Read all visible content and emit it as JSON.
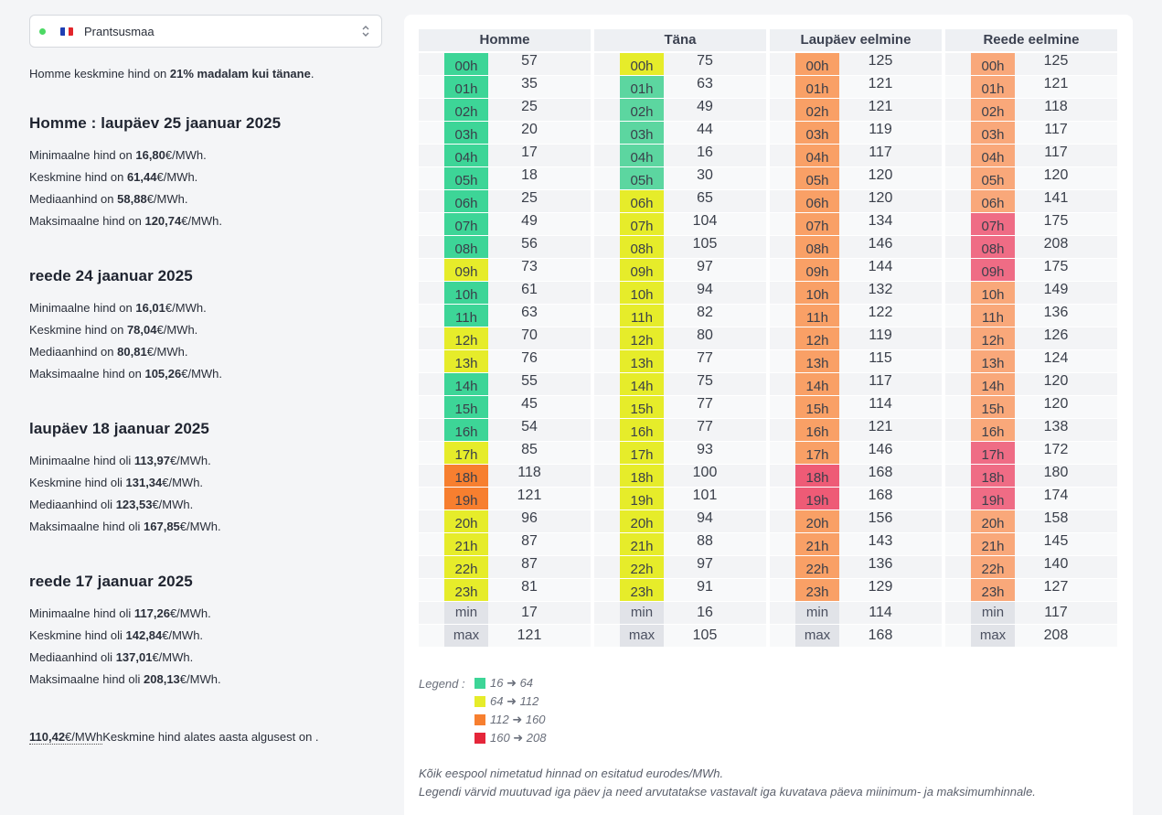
{
  "country_select": {
    "label": "Prantsusmaa",
    "status_color": "#4cd964",
    "flag_colors": [
      "#1f3fb3",
      "#ffffff",
      "#e2252b"
    ]
  },
  "comparison": {
    "prefix": "Homme keskmine hind on ",
    "highlight": "21% madalam kui tänane",
    "suffix": "."
  },
  "days": [
    {
      "title": "Homme : laupäev 25 jaanuar 2025",
      "stats": [
        {
          "label": "Minimaalne hind on ",
          "value": "16,80",
          "unit": "€/MWh."
        },
        {
          "label": "Keskmine hind on ",
          "value": "61,44",
          "unit": "€/MWh."
        },
        {
          "label": "Mediaanhind on ",
          "value": "58,88",
          "unit": "€/MWh."
        },
        {
          "label": "Maksimaalne hind on ",
          "value": "120,74",
          "unit": "€/MWh."
        }
      ]
    },
    {
      "title": "reede 24 jaanuar 2025",
      "stats": [
        {
          "label": "Minimaalne hind on ",
          "value": "16,01",
          "unit": "€/MWh."
        },
        {
          "label": "Keskmine hind on ",
          "value": "78,04",
          "unit": "€/MWh."
        },
        {
          "label": "Mediaanhind on ",
          "value": "80,81",
          "unit": "€/MWh."
        },
        {
          "label": "Maksimaalne hind on ",
          "value": "105,26",
          "unit": "€/MWh."
        }
      ]
    },
    {
      "title": "laupäev 18 jaanuar 2025",
      "stats": [
        {
          "label": "Minimaalne hind oli ",
          "value": "113,97",
          "unit": "€/MWh."
        },
        {
          "label": "Keskmine hind oli ",
          "value": "131,34",
          "unit": "€/MWh."
        },
        {
          "label": "Mediaanhind oli ",
          "value": "123,53",
          "unit": "€/MWh."
        },
        {
          "label": "Maksimaalne hind oli ",
          "value": "167,85",
          "unit": "€/MWh."
        }
      ]
    },
    {
      "title": "reede 17 jaanuar 2025",
      "stats": [
        {
          "label": "Minimaalne hind oli ",
          "value": "117,26",
          "unit": "€/MWh."
        },
        {
          "label": "Keskmine hind oli ",
          "value": "142,84",
          "unit": "€/MWh."
        },
        {
          "label": "Mediaanhind oli ",
          "value": "137,01",
          "unit": "€/MWh."
        },
        {
          "label": "Maksimaalne hind oli ",
          "value": "208,13",
          "unit": "€/MWh."
        }
      ]
    }
  ],
  "ytd": {
    "value": "110,42",
    "unit": "€/MWh",
    "text": "Keskmine hind alates aasta algusest on ."
  },
  "hours": [
    "00h",
    "01h",
    "02h",
    "03h",
    "04h",
    "05h",
    "06h",
    "07h",
    "08h",
    "09h",
    "10h",
    "11h",
    "12h",
    "13h",
    "14h",
    "15h",
    "16h",
    "17h",
    "18h",
    "19h",
    "20h",
    "21h",
    "22h",
    "23h"
  ],
  "min_label": "min",
  "max_label": "max",
  "columns": [
    {
      "header": "Homme",
      "values": [
        57,
        35,
        25,
        20,
        17,
        18,
        25,
        49,
        56,
        73,
        61,
        63,
        70,
        76,
        55,
        45,
        54,
        85,
        118,
        121,
        96,
        87,
        87,
        81
      ],
      "colors": [
        "#3dd597",
        "#3dd597",
        "#3dd597",
        "#3dd597",
        "#3dd597",
        "#3dd597",
        "#3dd597",
        "#3dd597",
        "#3dd597",
        "#e6ec2a",
        "#3dd597",
        "#3dd597",
        "#e6ec2a",
        "#e6ec2a",
        "#3dd597",
        "#3dd597",
        "#3dd597",
        "#e6ec2a",
        "#f77f2f",
        "#f77f2f",
        "#e6ec2a",
        "#e6ec2a",
        "#e6ec2a",
        "#e6ec2a"
      ],
      "min": 17,
      "max": 121
    },
    {
      "header": "Täna",
      "values": [
        75,
        63,
        49,
        44,
        16,
        30,
        65,
        104,
        105,
        97,
        94,
        82,
        80,
        77,
        75,
        77,
        77,
        93,
        100,
        101,
        94,
        88,
        97,
        91
      ],
      "colors": [
        "#e6ec2a",
        "#5cd6a0",
        "#5cd6a0",
        "#5cd6a0",
        "#5cd6a0",
        "#5cd6a0",
        "#e6ec2a",
        "#e6ec2a",
        "#e6ec2a",
        "#e6ec2a",
        "#e6ec2a",
        "#e6ec2a",
        "#e6ec2a",
        "#e6ec2a",
        "#e6ec2a",
        "#e6ec2a",
        "#e6ec2a",
        "#e6ec2a",
        "#e6ec2a",
        "#e6ec2a",
        "#e6ec2a",
        "#e6ec2a",
        "#e6ec2a",
        "#e6ec2a"
      ],
      "min": 16,
      "max": 105
    },
    {
      "header": "Laupäev eelmine",
      "values": [
        125,
        121,
        121,
        119,
        117,
        120,
        120,
        134,
        146,
        144,
        132,
        122,
        119,
        115,
        117,
        114,
        121,
        146,
        168,
        168,
        156,
        143,
        136,
        129
      ],
      "colors": [
        "#f9a066",
        "#f9a066",
        "#f9a066",
        "#f9a066",
        "#f9a066",
        "#f9a066",
        "#f9a066",
        "#f9a066",
        "#f9a066",
        "#f9a066",
        "#f9a066",
        "#f9a066",
        "#f9a066",
        "#f9a066",
        "#f9a066",
        "#f9a066",
        "#f9a066",
        "#f9a066",
        "#ee5b76",
        "#ee5b76",
        "#f9a066",
        "#f9a066",
        "#f9a066",
        "#f9a066"
      ],
      "min": 114,
      "max": 168
    },
    {
      "header": "Reede eelmine",
      "values": [
        125,
        121,
        118,
        117,
        117,
        120,
        141,
        175,
        208,
        175,
        149,
        136,
        126,
        124,
        120,
        120,
        138,
        172,
        180,
        174,
        158,
        145,
        140,
        127
      ],
      "colors": [
        "#f9a87a",
        "#f9a87a",
        "#f9a87a",
        "#f9a87a",
        "#f9a87a",
        "#f9a87a",
        "#f9a87a",
        "#ef6c85",
        "#ef6c85",
        "#ef6c85",
        "#f9a87a",
        "#f9a87a",
        "#f9a87a",
        "#f9a87a",
        "#f9a87a",
        "#f9a87a",
        "#f9a87a",
        "#ef6c85",
        "#ef6c85",
        "#ef6c85",
        "#f9a87a",
        "#f9a87a",
        "#f9a87a",
        "#f9a87a"
      ],
      "min": 117,
      "max": 208
    }
  ],
  "legend": {
    "title": "Legend :",
    "items": [
      {
        "color": "#3dd597",
        "label": "16 ➜ 64"
      },
      {
        "color": "#e6ec2a",
        "label": "64 ➜ 112"
      },
      {
        "color": "#f77f2f",
        "label": "112 ➜ 160"
      },
      {
        "color": "#e5263a",
        "label": "160 ➜ 208"
      }
    ]
  },
  "notes": [
    "Kõik eespool nimetatud hinnad on esitatud eurodes/MWh.",
    "Legendi värvid muutuvad iga päev ja need arvutatakse vastavalt iga kuvatava päeva miinimum- ja maksimumhinnale."
  ]
}
